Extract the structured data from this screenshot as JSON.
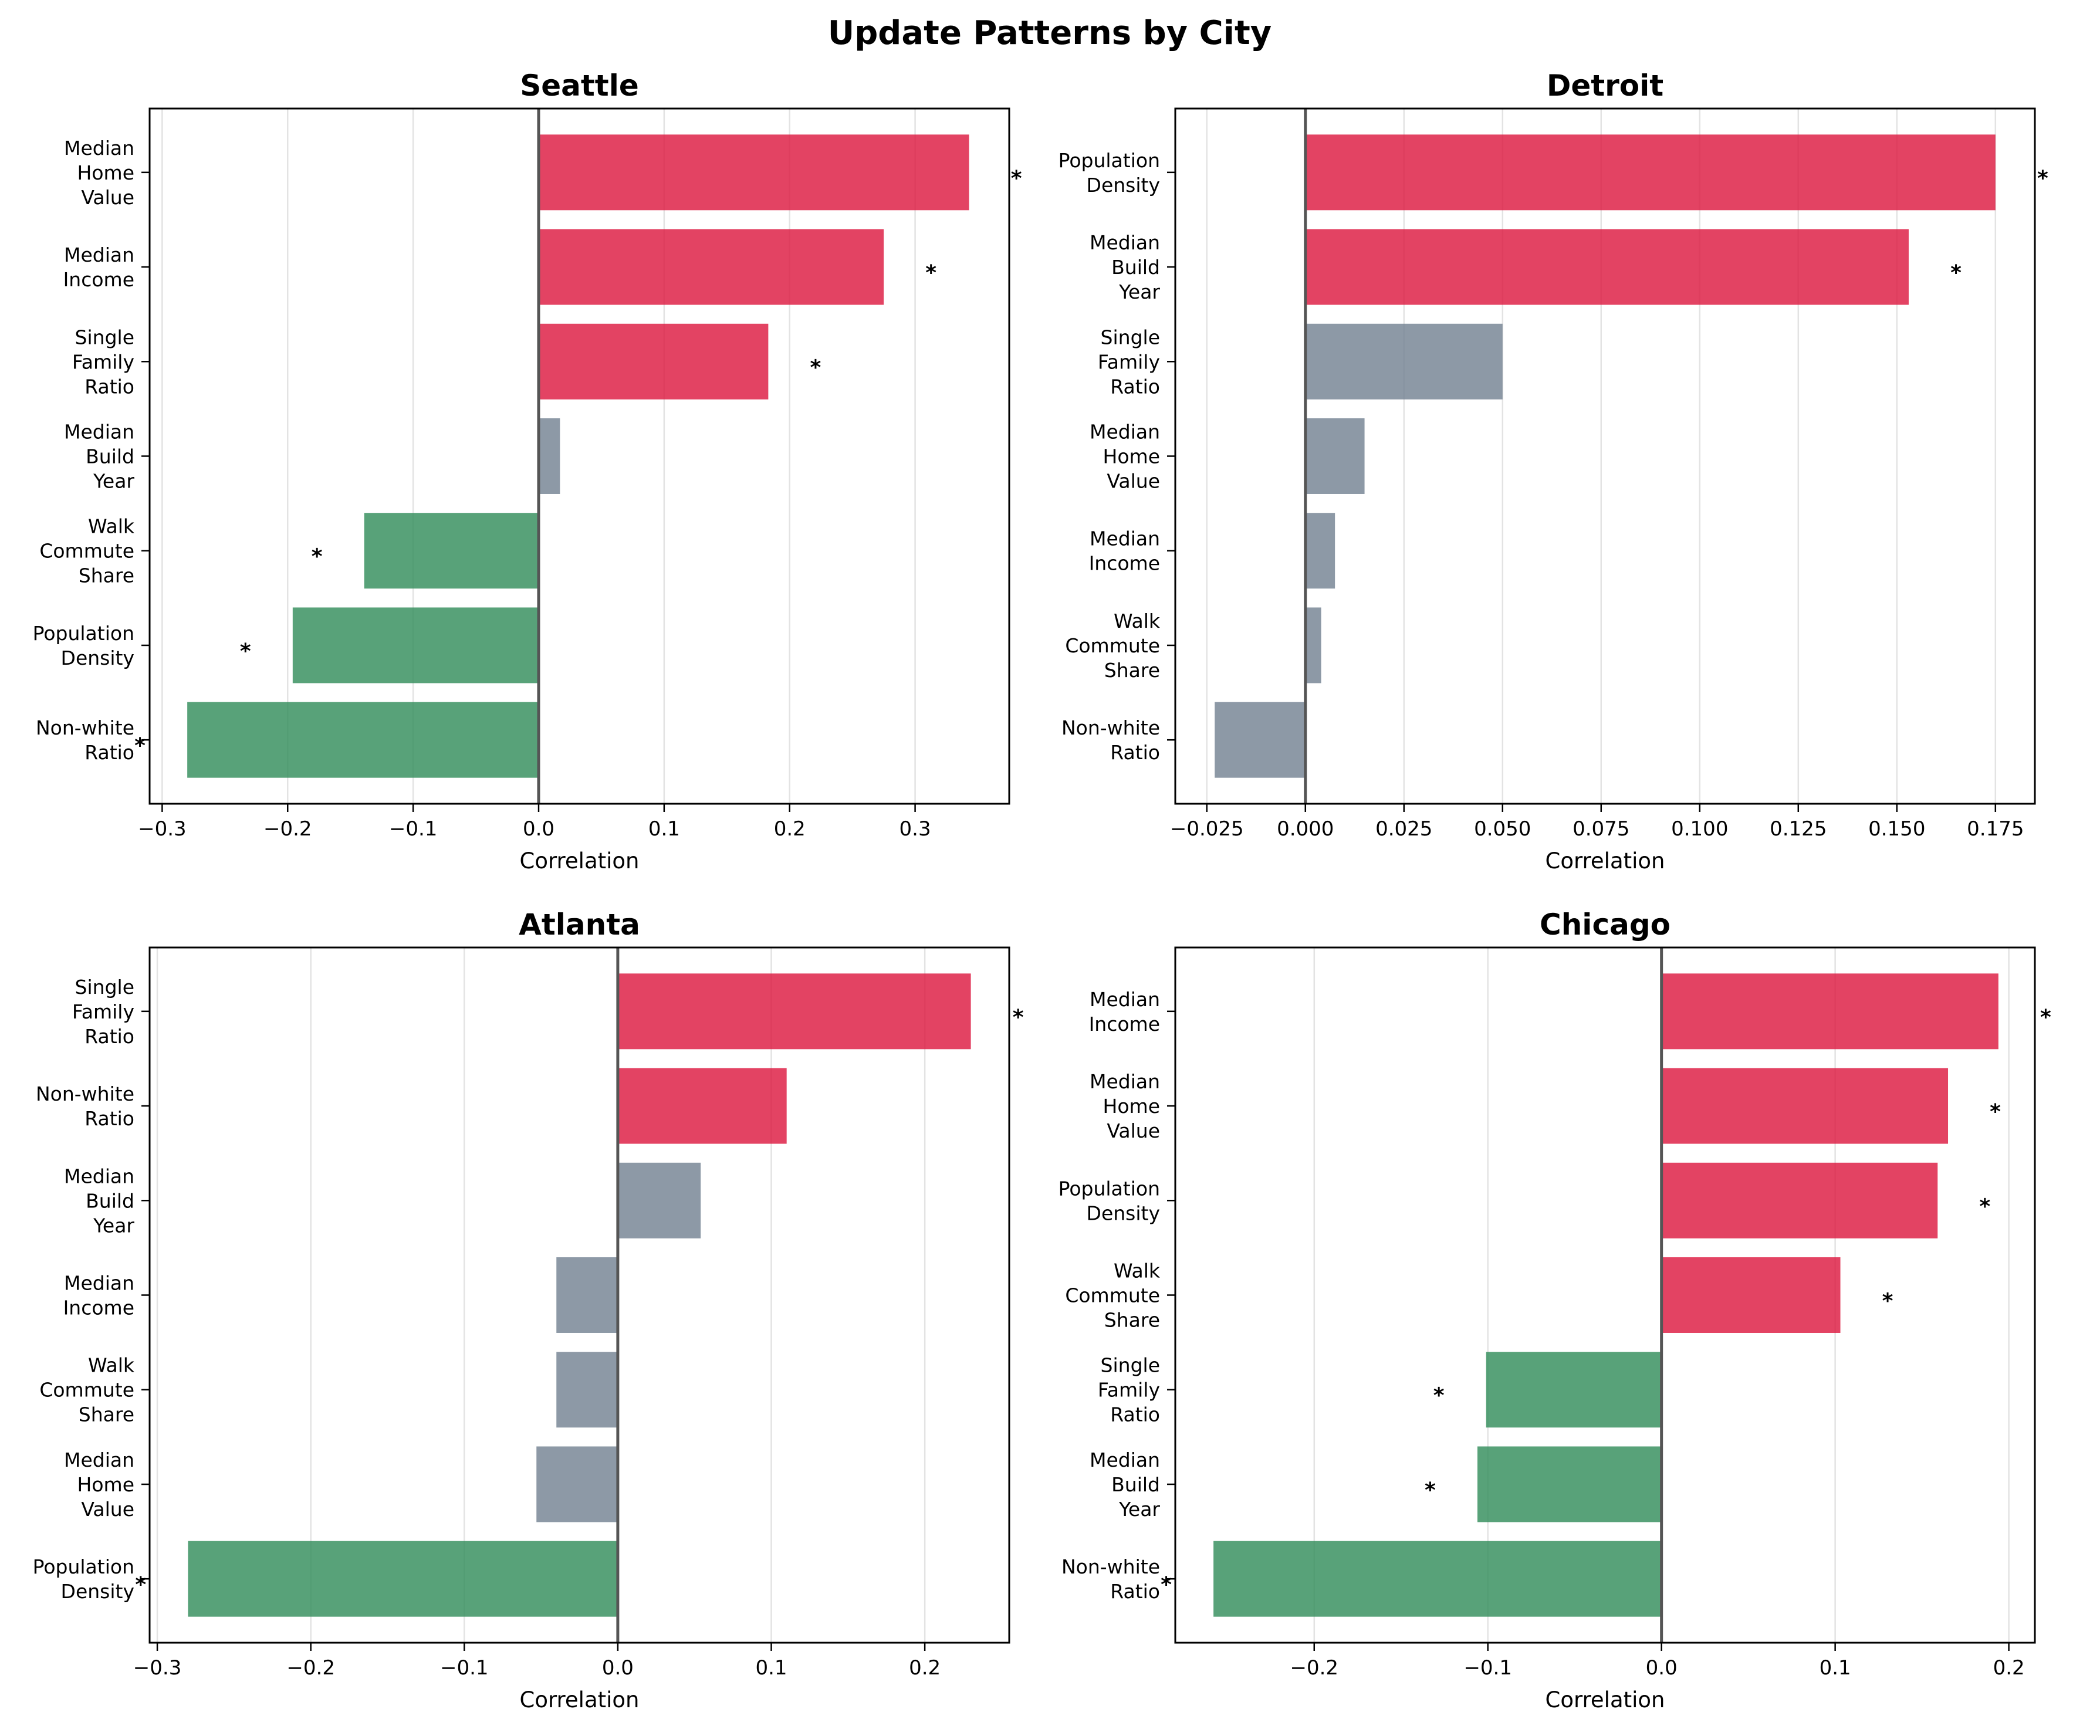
{
  "title": "Update Patterns by City",
  "colors": {
    "positive": "#dc143c",
    "negative": "#2e8b57",
    "neutral": "#708090",
    "zero_line": "#555555",
    "grid": "#e3e3e3"
  },
  "chart_data": [
    {
      "type": "bar",
      "orientation": "horizontal",
      "title": "Seattle",
      "xlabel": "Correlation",
      "xlim": [
        -0.31,
        0.375
      ],
      "xticks": [
        -0.3,
        -0.2,
        -0.1,
        0.0,
        0.1,
        0.2,
        0.3
      ],
      "xtick_labels": [
        "−0.3",
        "−0.2",
        "−0.1",
        "0.0",
        "0.1",
        "0.2",
        "0.3"
      ],
      "grid": true,
      "bars": [
        {
          "label": "Median\nHome\nValue",
          "value": 0.343,
          "color": "positive",
          "significant": true
        },
        {
          "label": "Median\nIncome",
          "value": 0.275,
          "color": "positive",
          "significant": true
        },
        {
          "label": "Single\nFamily\nRatio",
          "value": 0.183,
          "color": "positive",
          "significant": true
        },
        {
          "label": "Median\nBuild\nYear",
          "value": 0.017,
          "color": "neutral",
          "significant": false
        },
        {
          "label": "Walk\nCommute\nShare",
          "value": -0.139,
          "color": "negative",
          "significant": true
        },
        {
          "label": "Population\nDensity",
          "value": -0.196,
          "color": "negative",
          "significant": true
        },
        {
          "label": "Non-white\nRatio",
          "value": -0.28,
          "color": "negative",
          "significant": true
        }
      ]
    },
    {
      "type": "bar",
      "orientation": "horizontal",
      "title": "Detroit",
      "xlabel": "Correlation",
      "xlim": [
        -0.033,
        0.185
      ],
      "xticks": [
        -0.025,
        0.0,
        0.025,
        0.05,
        0.075,
        0.1,
        0.125,
        0.15,
        0.175
      ],
      "xtick_labels": [
        "−0.025",
        "0.000",
        "0.025",
        "0.050",
        "0.075",
        "0.100",
        "0.125",
        "0.150",
        "0.175"
      ],
      "grid": true,
      "bars": [
        {
          "label": "Population\nDensity",
          "value": 0.175,
          "color": "positive",
          "significant": true
        },
        {
          "label": "Median\nBuild\nYear",
          "value": 0.153,
          "color": "positive",
          "significant": true
        },
        {
          "label": "Single\nFamily\nRatio",
          "value": 0.05,
          "color": "neutral",
          "significant": false
        },
        {
          "label": "Median\nHome\nValue",
          "value": 0.015,
          "color": "neutral",
          "significant": false
        },
        {
          "label": "Median\nIncome",
          "value": 0.0075,
          "color": "neutral",
          "significant": false
        },
        {
          "label": "Walk\nCommute\nShare",
          "value": 0.004,
          "color": "neutral",
          "significant": false
        },
        {
          "label": "Non-white\nRatio",
          "value": -0.023,
          "color": "neutral",
          "significant": false
        }
      ]
    },
    {
      "type": "bar",
      "orientation": "horizontal",
      "title": "Atlanta",
      "xlabel": "Correlation",
      "xlim": [
        -0.305,
        0.255
      ],
      "xticks": [
        -0.3,
        -0.2,
        -0.1,
        0.0,
        0.1,
        0.2
      ],
      "xtick_labels": [
        "−0.3",
        "−0.2",
        "−0.1",
        "0.0",
        "0.1",
        "0.2"
      ],
      "grid": true,
      "bars": [
        {
          "label": "Single\nFamily\nRatio",
          "value": 0.23,
          "color": "positive",
          "significant": true
        },
        {
          "label": "Non-white\nRatio",
          "value": 0.11,
          "color": "positive",
          "significant": false
        },
        {
          "label": "Median\nBuild\nYear",
          "value": 0.054,
          "color": "neutral",
          "significant": false
        },
        {
          "label": "Median\nIncome",
          "value": -0.04,
          "color": "neutral",
          "significant": false
        },
        {
          "label": "Walk\nCommute\nShare",
          "value": -0.04,
          "color": "neutral",
          "significant": false
        },
        {
          "label": "Median\nHome\nValue",
          "value": -0.053,
          "color": "neutral",
          "significant": false
        },
        {
          "label": "Population\nDensity",
          "value": -0.28,
          "color": "negative",
          "significant": true
        }
      ]
    },
    {
      "type": "bar",
      "orientation": "horizontal",
      "title": "Chicago",
      "xlabel": "Correlation",
      "xlim": [
        -0.28,
        0.215
      ],
      "xticks": [
        -0.2,
        -0.1,
        0.0,
        0.1,
        0.2
      ],
      "xtick_labels": [
        "−0.2",
        "−0.1",
        "0.0",
        "0.1",
        "0.2"
      ],
      "grid": true,
      "bars": [
        {
          "label": "Median\nIncome",
          "value": 0.194,
          "color": "positive",
          "significant": true
        },
        {
          "label": "Median\nHome\nValue",
          "value": 0.165,
          "color": "positive",
          "significant": true
        },
        {
          "label": "Population\nDensity",
          "value": 0.159,
          "color": "positive",
          "significant": true
        },
        {
          "label": "Walk\nCommute\nShare",
          "value": 0.103,
          "color": "positive",
          "significant": true
        },
        {
          "label": "Single\nFamily\nRatio",
          "value": -0.101,
          "color": "negative",
          "significant": true
        },
        {
          "label": "Median\nBuild\nYear",
          "value": -0.106,
          "color": "negative",
          "significant": true
        },
        {
          "label": "Non-white\nRatio",
          "value": -0.258,
          "color": "negative",
          "significant": true
        }
      ]
    }
  ]
}
